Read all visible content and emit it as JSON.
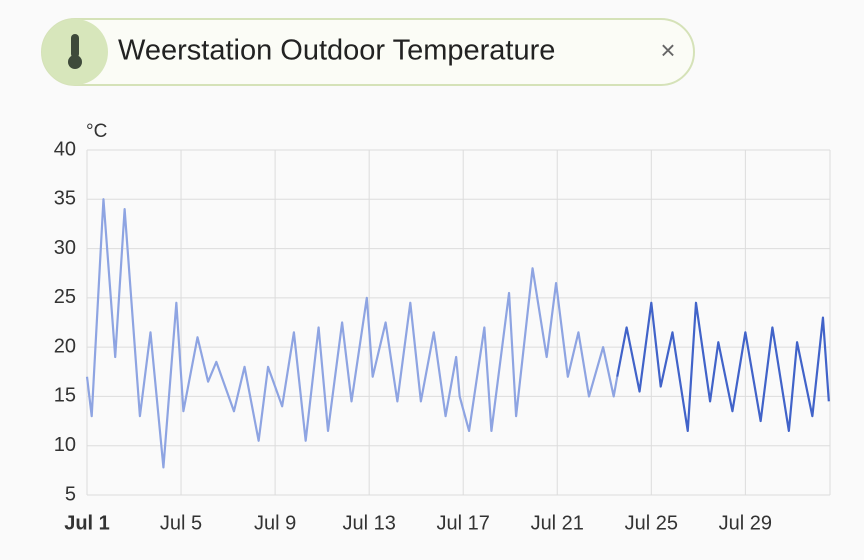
{
  "chart_data": {
    "type": "line",
    "title": "Weerstation Outdoor Temperature",
    "y_label": "°C",
    "x": [
      1.0,
      1.2,
      1.7,
      2.2,
      2.6,
      3.25,
      3.7,
      4.25,
      4.8,
      5.1,
      5.7,
      6.15,
      6.5,
      6.95,
      7.25,
      7.7,
      8.3,
      8.7,
      9.3,
      9.8,
      10.3,
      10.85,
      11.25,
      11.85,
      12.25,
      12.9,
      13.15,
      13.7,
      14.2,
      14.75,
      15.2,
      15.75,
      16.25,
      16.7,
      16.85,
      17.25,
      17.9,
      18.2,
      18.95,
      19.25,
      19.95,
      20.55,
      20.95,
      21.45,
      21.9,
      22.35,
      22.95,
      23.4,
      23.55,
      23.95,
      24.5,
      25.0,
      25.4,
      25.9,
      26.55,
      26.9,
      27.5,
      27.85,
      28.45,
      29.0,
      29.65,
      30.15,
      30.85,
      31.2,
      31.85,
      32.3,
      32.55
    ],
    "series": [
      {
        "color": "#8ea4e2",
        "values": [
          17,
          13,
          35,
          19,
          34,
          13,
          21.5,
          7.8,
          24.5,
          13.5,
          21,
          16.5,
          18.5,
          15.5,
          13.5,
          18,
          10.5,
          18,
          14,
          21.5,
          10.5,
          22,
          11.5,
          22.5,
          14.5,
          25,
          17,
          22.5,
          14.5,
          24.5,
          14.5,
          21.5,
          13,
          19,
          15,
          11.5,
          22,
          11.5,
          25.5,
          13,
          28,
          19,
          26.5,
          17,
          21.5,
          15,
          20,
          15,
          17,
          null,
          null,
          null,
          null,
          null,
          null,
          null,
          null,
          null,
          null,
          null,
          null,
          null,
          null,
          null,
          null,
          null,
          null
        ]
      },
      {
        "color": "#4163c9",
        "values": [
          null,
          null,
          null,
          null,
          null,
          null,
          null,
          null,
          null,
          null,
          null,
          null,
          null,
          null,
          null,
          null,
          null,
          null,
          null,
          null,
          null,
          null,
          null,
          null,
          null,
          null,
          null,
          null,
          null,
          null,
          null,
          null,
          null,
          null,
          null,
          null,
          null,
          null,
          null,
          null,
          null,
          null,
          null,
          null,
          null,
          null,
          null,
          null,
          17,
          22,
          15.5,
          24.5,
          16,
          21.5,
          11.5,
          24.5,
          14.5,
          20.5,
          13.5,
          21.5,
          12.5,
          22,
          11.5,
          20.5,
          13,
          23,
          14.5
        ]
      }
    ],
    "xlim": [
      1,
      32.6
    ],
    "xticks": [
      {
        "value": 1,
        "label": "Jul 1"
      },
      {
        "value": 5,
        "label": "Jul 5"
      },
      {
        "value": 9,
        "label": "Jul 9"
      },
      {
        "value": 13,
        "label": "Jul 13"
      },
      {
        "value": 17,
        "label": "Jul 17"
      },
      {
        "value": 21,
        "label": "Jul 21"
      },
      {
        "value": 25,
        "label": "Jul 25"
      },
      {
        "value": 29,
        "label": "Jul 29"
      }
    ],
    "ylim": [
      5,
      40
    ],
    "yticks": [
      5,
      10,
      15,
      20,
      25,
      30,
      35,
      40
    ],
    "grid": true
  }
}
